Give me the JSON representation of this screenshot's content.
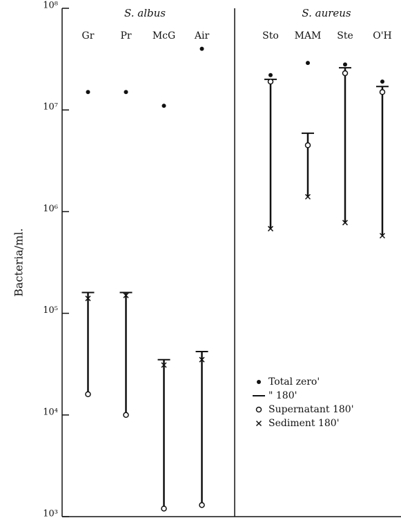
{
  "chart_data": {
    "type": "range-dot",
    "ylabel": "Bacteria/ml.",
    "log_y": true,
    "ylim": [
      1000,
      100000000
    ],
    "yticks": [
      {
        "value": 1000,
        "label": "10³"
      },
      {
        "value": 10000,
        "label": "10⁴"
      },
      {
        "value": 100000,
        "label": "10⁵"
      },
      {
        "value": 1000000,
        "label": "10⁶"
      },
      {
        "value": 10000000,
        "label": "10⁷"
      },
      {
        "value": 100000000,
        "label": "10⁸"
      }
    ],
    "panels": [
      {
        "title": "S. albus",
        "categories": [
          "Gr",
          "Pr",
          "McG",
          "Air"
        ]
      },
      {
        "title": "S. aureus",
        "categories": [
          "Sto",
          "MAM",
          "Ste",
          "O'H"
        ]
      }
    ],
    "legend": "lower right",
    "series": [
      {
        "name": "Total zero'",
        "marker": "dot",
        "color": "#111",
        "values": [
          15000000,
          15000000,
          11000000,
          40000000,
          22000000,
          29000000,
          28000000,
          19000000
        ]
      },
      {
        "name": "\" 180'",
        "marker": "dash",
        "color": "#111",
        "values": [
          160000,
          160000,
          35000,
          42000,
          20000000,
          5900000,
          26000000,
          17000000
        ]
      },
      {
        "name": "Supernatant 180'",
        "marker": "circle",
        "color": "#111",
        "values": [
          16000,
          10000,
          1200,
          1300,
          19000000,
          4500000,
          23000000,
          15000000
        ]
      },
      {
        "name": "Sediment 180'",
        "marker": "cross",
        "color": "#111",
        "values": [
          140000,
          150000,
          31000,
          35000,
          680000,
          1400000,
          780000,
          580000
        ]
      }
    ]
  }
}
